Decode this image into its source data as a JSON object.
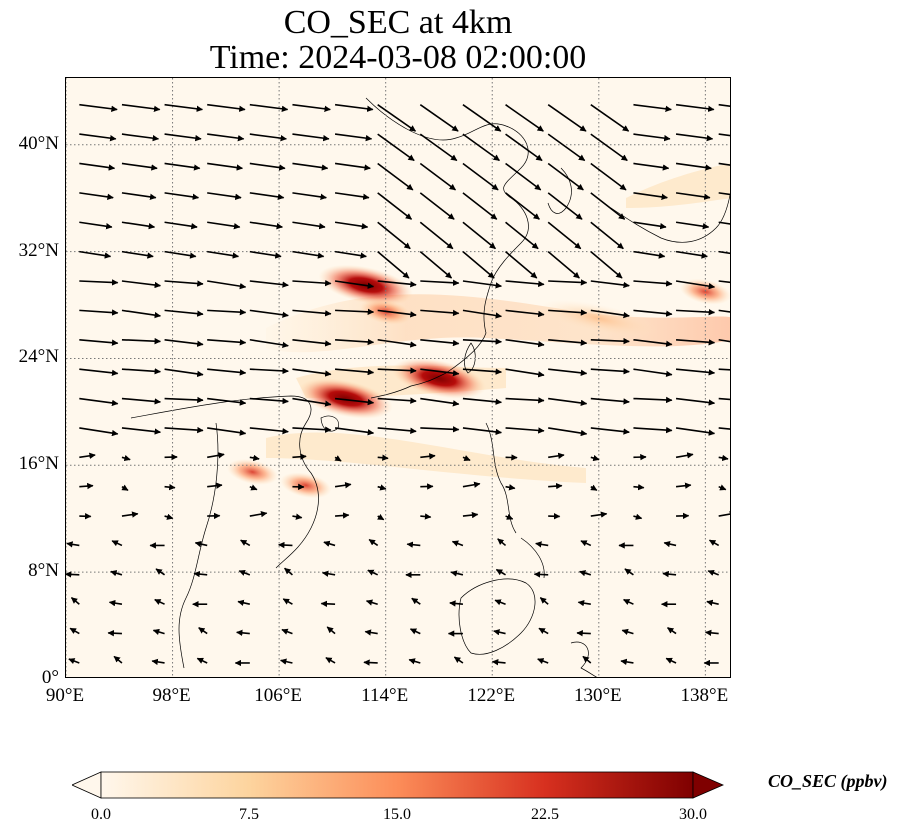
{
  "title": {
    "line1": "CO_SEC at 4km",
    "line2": "Time: 2024-03-08 02:00:00"
  },
  "map": {
    "lon_range": [
      90,
      140
    ],
    "lat_range": [
      0,
      45
    ],
    "lat_ticks": [
      {
        "value": 40,
        "label": "40°N"
      },
      {
        "value": 32,
        "label": "32°N"
      },
      {
        "value": 24,
        "label": "24°N"
      },
      {
        "value": 16,
        "label": "16°N"
      },
      {
        "value": 8,
        "label": "8°N"
      },
      {
        "value": 0,
        "label": "0°"
      }
    ],
    "lon_ticks": [
      {
        "value": 90,
        "label": "90°E"
      },
      {
        "value": 98,
        "label": "98°E"
      },
      {
        "value": 106,
        "label": "106°E"
      },
      {
        "value": 114,
        "label": "114°E"
      },
      {
        "value": 122,
        "label": "122°E"
      },
      {
        "value": 130,
        "label": "130°E"
      },
      {
        "value": 138,
        "label": "138°E"
      }
    ],
    "gridlines": true,
    "plumes": [
      {
        "lon": 111,
        "lat": 21,
        "level": "high"
      },
      {
        "lon": 118,
        "lat": 22.5,
        "level": "high"
      },
      {
        "lon": 112.5,
        "lat": 29.5,
        "level": "high"
      },
      {
        "lon": 114,
        "lat": 27.5,
        "level": "medium"
      },
      {
        "lon": 108,
        "lat": 14.5,
        "level": "medium"
      },
      {
        "lon": 104,
        "lat": 15.5,
        "level": "medium"
      },
      {
        "lon": 130,
        "lat": 27,
        "level": "low"
      },
      {
        "lon": 138,
        "lat": 29,
        "level": "medium"
      }
    ]
  },
  "colorbar": {
    "label": "CO_SEC (ppbv)",
    "min": 0,
    "max": 30,
    "ticks": [
      {
        "value": 0,
        "label": "0.0"
      },
      {
        "value": 7.5,
        "label": "7.5"
      },
      {
        "value": 15,
        "label": "15.0"
      },
      {
        "value": 22.5,
        "label": "22.5"
      },
      {
        "value": 30,
        "label": "30.0"
      }
    ],
    "colors": [
      "#fff7ec",
      "#fdd49e",
      "#fc8d59",
      "#d7301f",
      "#7f0000"
    ],
    "extend": "both"
  }
}
